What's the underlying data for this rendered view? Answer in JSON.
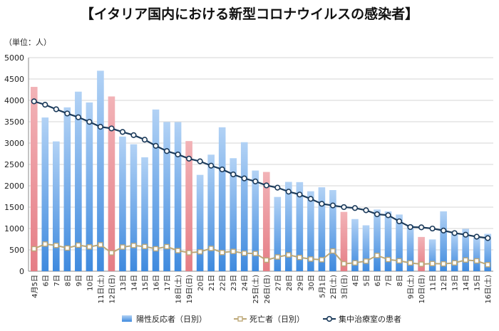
{
  "chart_data": {
    "type": "bar",
    "title": "【イタリア国内における新型コロナウイルスの感染者】",
    "unit_label": "（単位：人）",
    "ylim": [
      0,
      5000
    ],
    "yticks": [
      "0",
      "500",
      "1000",
      "1500",
      "2000",
      "2500",
      "3000",
      "3500",
      "4000",
      "4500",
      "5000"
    ],
    "grid": true,
    "legend_position": "bottom",
    "categories": [
      "4月5日",
      "6日",
      "7日",
      "8日",
      "9日",
      "10日",
      "11日(土)",
      "12日(日)",
      "13日",
      "14日",
      "15日",
      "16日",
      "17日",
      "18日(土)",
      "19日(日)",
      "20日",
      "21日",
      "22日",
      "23日",
      "24日",
      "25日(土)",
      "26日(日)",
      "27日",
      "28日",
      "29日",
      "30日",
      "5月1日",
      "2日(土)",
      "3日(日)",
      "4日",
      "5日",
      "6日",
      "7日",
      "8日",
      "9日(土)",
      "10日(日)",
      "11日",
      "12日",
      "13日",
      "14日",
      "15日",
      "16日(土)"
    ],
    "weekend_colors": {
      "normal": "#7fb1e8",
      "highlight": "#ee9aa0"
    },
    "highlight_flags": [
      1,
      0,
      0,
      0,
      0,
      0,
      0,
      1,
      0,
      0,
      0,
      0,
      0,
      0,
      1,
      0,
      0,
      0,
      0,
      0,
      0,
      1,
      0,
      0,
      0,
      0,
      0,
      0,
      1,
      0,
      0,
      0,
      0,
      0,
      0,
      1,
      0,
      0,
      0,
      0,
      0,
      0
    ],
    "series": [
      {
        "name": "陽性反応者（日別）",
        "kind": "bar",
        "color": "#6fa8e8",
        "values": [
          4316,
          3599,
          3039,
          3836,
          4204,
          3951,
          4694,
          4092,
          3153,
          2972,
          2667,
          3786,
          3493,
          3491,
          3047,
          2256,
          2729,
          3370,
          2646,
          3021,
          2357,
          2324,
          1739,
          2091,
          2086,
          1872,
          1965,
          1900,
          1389,
          1221,
          1075,
          1444,
          1401,
          1327,
          1083,
          802,
          744,
          1402,
          888,
          992,
          789,
          875
        ]
      },
      {
        "name": "死亡者（日別）",
        "kind": "line",
        "color": "#bda878",
        "values": [
          525,
          636,
          604,
          542,
          610,
          570,
          619,
          431,
          566,
          602,
          578,
          525,
          575,
          482,
          433,
          454,
          534,
          437,
          464,
          420,
          415,
          260,
          333,
          382,
          323,
          285,
          269,
          474,
          174,
          195,
          236,
          369,
          274,
          243,
          194,
          165,
          179,
          172,
          195,
          262,
          242,
          153
        ]
      },
      {
        "name": "集中治療室の患者",
        "kind": "line",
        "color": "#1b3a5a",
        "values": [
          3977,
          3898,
          3792,
          3693,
          3605,
          3497,
          3381,
          3343,
          3260,
          3186,
          3079,
          2936,
          2812,
          2733,
          2635,
          2573,
          2471,
          2384,
          2267,
          2173,
          2102,
          2009,
          1956,
          1863,
          1795,
          1694,
          1578,
          1539,
          1501,
          1479,
          1427,
          1333,
          1311,
          1168,
          1034,
          1027,
          999,
          952,
          893,
          855,
          808,
          775
        ]
      }
    ]
  }
}
